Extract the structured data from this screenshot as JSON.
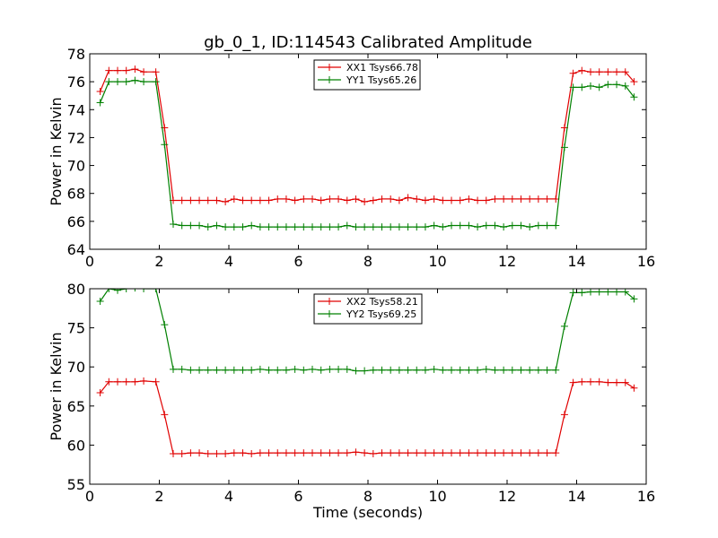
{
  "figure": {
    "title": "gb_0_1, ID:114543 Calibrated Amplitude"
  },
  "chart_data": [
    {
      "type": "line",
      "title": "gb_0_1, ID:114543 Calibrated Amplitude",
      "xlabel": "",
      "ylabel": "Power in Kelvin",
      "xlim": [
        0,
        16
      ],
      "ylim": [
        64,
        78
      ],
      "xticks": [
        0,
        2,
        4,
        6,
        8,
        10,
        12,
        14,
        16
      ],
      "yticks": [
        64,
        66,
        68,
        70,
        72,
        74,
        76,
        78
      ],
      "grid": false,
      "legend": "top-center",
      "x": [
        0.3,
        0.55,
        0.8,
        1.05,
        1.3,
        1.55,
        1.9,
        2.15,
        2.4,
        2.65,
        2.9,
        3.15,
        3.4,
        3.65,
        3.9,
        4.15,
        4.4,
        4.65,
        4.9,
        5.15,
        5.4,
        5.65,
        5.9,
        6.15,
        6.4,
        6.65,
        6.9,
        7.15,
        7.4,
        7.65,
        7.9,
        8.15,
        8.4,
        8.65,
        8.9,
        9.15,
        9.4,
        9.65,
        9.9,
        10.15,
        10.4,
        10.65,
        10.9,
        11.15,
        11.4,
        11.65,
        11.9,
        12.15,
        12.4,
        12.65,
        12.9,
        13.15,
        13.4,
        13.65,
        13.9,
        14.15,
        14.4,
        14.65,
        14.9,
        15.15,
        15.4,
        15.65
      ],
      "series": [
        {
          "name": "XX1 Tsys66.78",
          "color": "#e00000",
          "values": [
            75.3,
            76.8,
            76.8,
            76.8,
            76.9,
            76.7,
            76.7,
            72.7,
            67.5,
            67.5,
            67.5,
            67.5,
            67.5,
            67.5,
            67.4,
            67.6,
            67.5,
            67.5,
            67.5,
            67.5,
            67.6,
            67.6,
            67.5,
            67.6,
            67.6,
            67.5,
            67.6,
            67.6,
            67.5,
            67.6,
            67.4,
            67.5,
            67.6,
            67.6,
            67.5,
            67.7,
            67.6,
            67.5,
            67.6,
            67.5,
            67.5,
            67.5,
            67.6,
            67.5,
            67.5,
            67.6,
            67.6,
            67.6,
            67.6,
            67.6,
            67.6,
            67.6,
            67.6,
            72.7,
            76.6,
            76.8,
            76.7,
            76.7,
            76.7,
            76.7,
            76.7,
            76.0
          ]
        },
        {
          "name": "YY1 Tsys65.26",
          "color": "#008000",
          "values": [
            74.5,
            76.0,
            76.0,
            76.0,
            76.1,
            76.0,
            76.0,
            71.5,
            65.8,
            65.7,
            65.7,
            65.7,
            65.6,
            65.7,
            65.6,
            65.6,
            65.6,
            65.7,
            65.6,
            65.6,
            65.6,
            65.6,
            65.6,
            65.6,
            65.6,
            65.6,
            65.6,
            65.6,
            65.7,
            65.6,
            65.6,
            65.6,
            65.6,
            65.6,
            65.6,
            65.6,
            65.6,
            65.6,
            65.7,
            65.6,
            65.7,
            65.7,
            65.7,
            65.6,
            65.7,
            65.7,
            65.6,
            65.7,
            65.7,
            65.6,
            65.7,
            65.7,
            65.7,
            71.3,
            75.6,
            75.6,
            75.7,
            75.6,
            75.8,
            75.8,
            75.7,
            74.9
          ]
        }
      ]
    },
    {
      "type": "line",
      "title": "",
      "xlabel": "Time (seconds)",
      "ylabel": "Power in Kelvin",
      "xlim": [
        0,
        16
      ],
      "ylim": [
        55,
        80
      ],
      "xticks": [
        0,
        2,
        4,
        6,
        8,
        10,
        12,
        14,
        16
      ],
      "yticks": [
        55,
        60,
        65,
        70,
        75,
        80
      ],
      "grid": false,
      "legend": "top-center",
      "x": [
        0.3,
        0.55,
        0.8,
        1.05,
        1.3,
        1.55,
        1.9,
        2.15,
        2.4,
        2.65,
        2.9,
        3.15,
        3.4,
        3.65,
        3.9,
        4.15,
        4.4,
        4.65,
        4.9,
        5.15,
        5.4,
        5.65,
        5.9,
        6.15,
        6.4,
        6.65,
        6.9,
        7.15,
        7.4,
        7.65,
        7.9,
        8.15,
        8.4,
        8.65,
        8.9,
        9.15,
        9.4,
        9.65,
        9.9,
        10.15,
        10.4,
        10.65,
        10.9,
        11.15,
        11.4,
        11.65,
        11.9,
        12.15,
        12.4,
        12.65,
        12.9,
        13.15,
        13.4,
        13.65,
        13.9,
        14.15,
        14.4,
        14.65,
        14.9,
        15.15,
        15.4,
        15.65
      ],
      "series": [
        {
          "name": "XX2 Tsys58.21",
          "color": "#e00000",
          "values": [
            66.7,
            68.1,
            68.1,
            68.1,
            68.1,
            68.2,
            68.1,
            63.9,
            58.9,
            58.9,
            59.0,
            59.0,
            58.9,
            58.9,
            58.9,
            59.0,
            59.0,
            58.9,
            59.0,
            59.0,
            59.0,
            59.0,
            59.0,
            59.0,
            59.0,
            59.0,
            59.0,
            59.0,
            59.0,
            59.1,
            59.0,
            58.9,
            59.0,
            59.0,
            59.0,
            59.0,
            59.0,
            59.0,
            59.0,
            59.0,
            59.0,
            59.0,
            59.0,
            59.0,
            59.0,
            59.0,
            59.0,
            59.0,
            59.0,
            59.0,
            59.0,
            59.0,
            59.0,
            63.9,
            68.0,
            68.1,
            68.1,
            68.1,
            68.0,
            68.0,
            68.0,
            67.3
          ]
        },
        {
          "name": "YY2 Tsys69.25",
          "color": "#008000",
          "values": [
            78.4,
            80.0,
            79.8,
            80.0,
            80.1,
            80.0,
            80.0,
            75.4,
            69.7,
            69.7,
            69.6,
            69.6,
            69.6,
            69.6,
            69.6,
            69.6,
            69.6,
            69.6,
            69.7,
            69.6,
            69.6,
            69.6,
            69.7,
            69.6,
            69.7,
            69.6,
            69.7,
            69.7,
            69.7,
            69.5,
            69.5,
            69.6,
            69.6,
            69.6,
            69.6,
            69.6,
            69.6,
            69.6,
            69.7,
            69.6,
            69.6,
            69.6,
            69.6,
            69.6,
            69.7,
            69.6,
            69.6,
            69.6,
            69.6,
            69.6,
            69.6,
            69.6,
            69.6,
            75.2,
            79.5,
            79.5,
            79.6,
            79.6,
            79.6,
            79.6,
            79.6,
            78.7
          ]
        }
      ]
    }
  ]
}
